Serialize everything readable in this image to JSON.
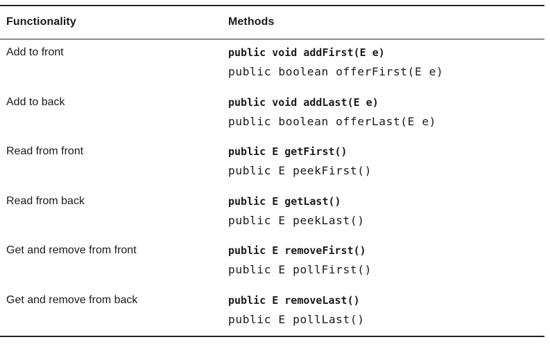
{
  "table": {
    "headers": {
      "functionality": "Functionality",
      "methods": "Methods"
    },
    "rows": [
      {
        "functionality": "Add to front",
        "method_primary": "public void addFirst(E e)",
        "method_secondary": "public boolean offerFirst(E e)"
      },
      {
        "functionality": "Add to back",
        "method_primary": "public void addLast(E e)",
        "method_secondary": "public boolean offerLast(E e)"
      },
      {
        "functionality": "Read from front",
        "method_primary": "public E getFirst()",
        "method_secondary": "public E peekFirst()"
      },
      {
        "functionality": "Read from back",
        "method_primary": "public E getLast()",
        "method_secondary": "public E peekLast()"
      },
      {
        "functionality": "Get and remove from front",
        "method_primary": "public E removeFirst()",
        "method_secondary": "public E pollFirst()"
      },
      {
        "functionality": "Get and remove from back",
        "method_primary": "public E removeLast()",
        "method_secondary": "public E pollLast()"
      }
    ]
  }
}
